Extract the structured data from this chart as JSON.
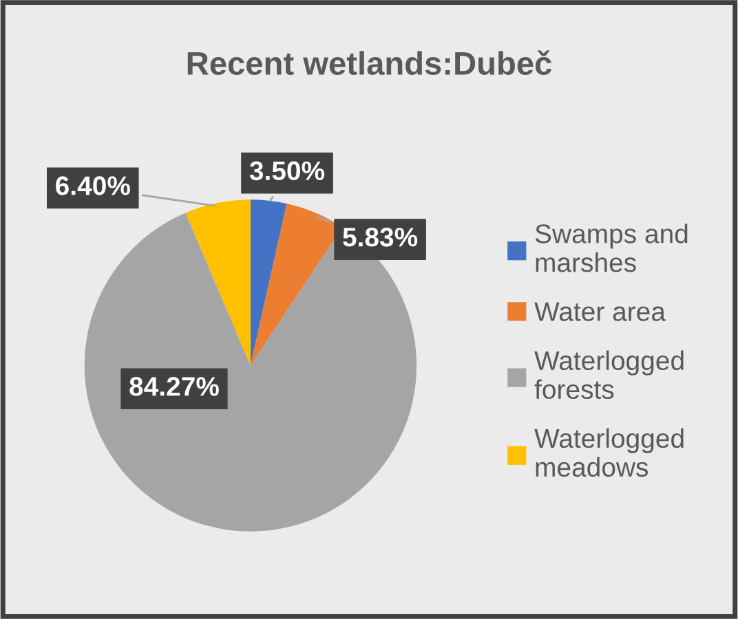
{
  "chart_data": {
    "type": "pie",
    "title": "Recent wetlands:Dubeč",
    "categories": [
      "Swamps and marshes",
      "Water area",
      "Waterlogged forests",
      "Waterlogged meadows"
    ],
    "values": [
      3.5,
      5.83,
      84.27,
      6.4
    ],
    "colors": [
      "#4472c4",
      "#ed7d31",
      "#a5a5a5",
      "#ffc000"
    ],
    "value_labels": [
      "3.50%",
      "5.83%",
      "84.27%",
      "6.40%"
    ],
    "legend": "right"
  }
}
